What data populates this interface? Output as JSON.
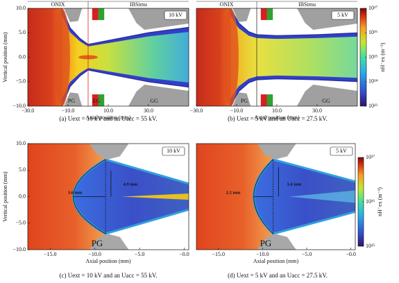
{
  "chart_data": [
    {
      "type": "heatmap",
      "xlabel": "Axial position (mm)",
      "ylabel": "Vertical position (mm)",
      "xlim": [
        -30,
        50
      ],
      "ylim": [
        -10,
        10
      ],
      "xticks": [
        {
          "value": -30,
          "label": "−30.0"
        },
        {
          "value": -10,
          "label": "−10.0"
        },
        {
          "value": 10,
          "label": "10.0"
        },
        {
          "value": 30,
          "label": "30.0"
        }
      ],
      "yticks": [
        {
          "value": 10,
          "label": "10.0"
        },
        {
          "value": 5,
          "label": "5.0"
        },
        {
          "value": 0,
          "label": "0.0"
        },
        {
          "value": -5,
          "label": "−5.0"
        },
        {
          "value": -10,
          "label": "−10.0"
        }
      ],
      "regions": [
        "ONIX",
        "IBSimu"
      ],
      "annotations": [
        "10 kV",
        "PG",
        "EG",
        "GG"
      ],
      "caption": "(a) Uext = 10 kV and an Uacc = 55 kV."
    },
    {
      "type": "heatmap",
      "xlabel": "Axial position (mm)",
      "xlim": [
        -30,
        50
      ],
      "ylim": [
        -10,
        10
      ],
      "xticks": [
        {
          "value": -30,
          "label": "−30.0"
        },
        {
          "value": -10,
          "label": "−10.0"
        },
        {
          "value": 10,
          "label": "10.0"
        },
        {
          "value": 30,
          "label": "30.0"
        }
      ],
      "regions": [
        "ONIX",
        "IBSimu"
      ],
      "annotations": [
        "5 kV",
        "PG",
        "GG"
      ],
      "colorbar": {
        "label": "nH⁻ex (m⁻³)",
        "scale": "log",
        "lim": [
          10000000000000.0,
          1e+17
        ],
        "ticks": [
          {
            "value": 10000000000000.0,
            "label": "10¹³"
          },
          {
            "value": 100000000000000.0,
            "label": "10¹⁴"
          },
          {
            "value": 1000000000000000.0,
            "label": "10¹⁵"
          },
          {
            "value": 1e+16,
            "label": "10¹⁶"
          },
          {
            "value": 1e+17,
            "label": "10¹⁷"
          }
        ]
      },
      "caption": "(b) Uext = 5 kV and an Uacc = 27.5 kV."
    },
    {
      "type": "heatmap",
      "xlabel": "Axial position (mm)",
      "ylabel": "Vertical position (mm)",
      "xlim": [
        -17.5,
        0.5
      ],
      "ylim": [
        -10,
        10
      ],
      "xticks": [
        {
          "value": -15,
          "label": "−15.0"
        },
        {
          "value": -10,
          "label": "−10.0"
        },
        {
          "value": -5,
          "label": "−5.0"
        },
        {
          "value": 0,
          "label": "−0.0"
        }
      ],
      "yticks": [
        {
          "value": 10,
          "label": "10.0"
        },
        {
          "value": 5,
          "label": "5.0"
        },
        {
          "value": 0,
          "label": "0.0"
        },
        {
          "value": -5,
          "label": "−5.0"
        },
        {
          "value": -10,
          "label": "−10.0"
        }
      ],
      "annotations": [
        "10 kV",
        "3.6 mm",
        "4.9 mm",
        "PG"
      ],
      "caption": "(c) Uext = 10 kV and an Uacc = 55 kV."
    },
    {
      "type": "heatmap",
      "xlabel": "Axial position (mm)",
      "xlim": [
        -17.5,
        0.5
      ],
      "ylim": [
        -10,
        10
      ],
      "xticks": [
        {
          "value": -15,
          "label": "−15.0"
        },
        {
          "value": -10,
          "label": "−10.0"
        },
        {
          "value": -5,
          "label": "−5.0"
        },
        {
          "value": 0,
          "label": "−0.0"
        }
      ],
      "annotations": [
        "5 kV",
        "2.2 mm",
        "5.6 mm",
        "PG"
      ],
      "colorbar": {
        "label": "nH⁻ex (m⁻³)",
        "scale": "log",
        "lim": [
          1000000000000000.0,
          1e+17
        ],
        "ticks": [
          {
            "value": 1000000000000000.0,
            "label": "10¹⁵"
          },
          {
            "value": 1e+16,
            "label": "10¹⁶"
          },
          {
            "value": 1e+17,
            "label": "10¹⁷"
          }
        ]
      },
      "caption": "(d) Uext = 5 kV and an Uacc = 27.5 kV."
    }
  ]
}
